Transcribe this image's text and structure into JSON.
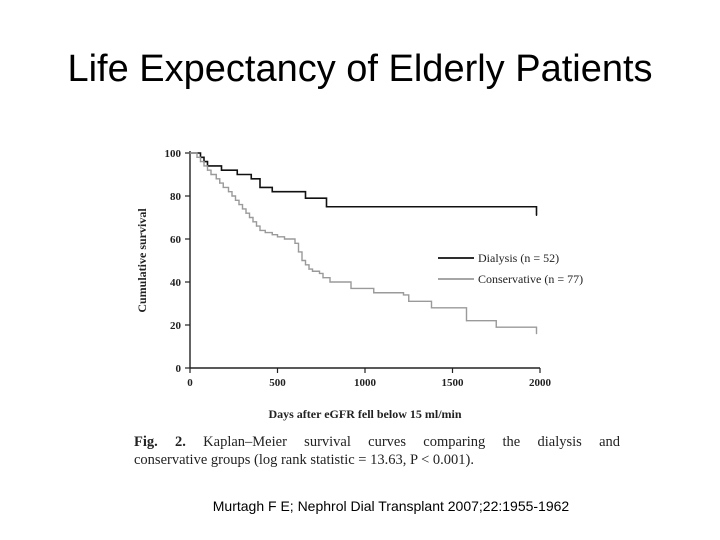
{
  "slide": {
    "title": "Life Expectancy of Elderly Patients",
    "caption_label": "Fig. 2.",
    "caption_line1": "Kaplan–Meier survival curves comparing the dialysis and",
    "caption_line2": "conservative groups (log rank statistic = 13.63,  P < 0.001).",
    "citation": "Murtagh F E; Nephrol Dial Transplant 2007;22:1955-1962"
  },
  "colors": {
    "dialysis": "#111111",
    "conservative": "#9a9a9a",
    "axis": "#222222"
  },
  "chart_data": {
    "type": "line",
    "title": "",
    "xlabel": "Days after eGFR fell below 15 ml/min",
    "ylabel": "Cumulative survival",
    "xlim": [
      0,
      2000
    ],
    "ylim": [
      0,
      100
    ],
    "xticks": [
      0,
      500,
      1000,
      1500,
      2000
    ],
    "yticks": [
      0,
      20,
      40,
      60,
      80,
      100
    ],
    "legend_position": "right",
    "series": [
      {
        "name": "Dialysis",
        "legend_label": "Dialysis (n = 52)",
        "step": true,
        "x": [
          0,
          60,
          80,
          100,
          180,
          270,
          350,
          400,
          470,
          660,
          780,
          1980
        ],
        "y": [
          100,
          98,
          96,
          94,
          92,
          90,
          88,
          84,
          82,
          79,
          75,
          71
        ]
      },
      {
        "name": "Conservative",
        "legend_label": "Conservative (n = 77)",
        "step": true,
        "x": [
          0,
          40,
          60,
          80,
          100,
          120,
          150,
          170,
          190,
          220,
          240,
          260,
          280,
          300,
          320,
          340,
          360,
          380,
          400,
          430,
          470,
          500,
          540,
          600,
          620,
          640,
          660,
          680,
          700,
          740,
          760,
          800,
          920,
          1050,
          1220,
          1250,
          1380,
          1580,
          1750,
          1980
        ],
        "y": [
          100,
          98,
          96,
          94,
          92,
          90,
          88,
          86,
          84,
          82,
          80,
          78,
          76,
          74,
          72,
          70,
          68,
          66,
          64,
          63,
          62,
          61,
          60,
          58,
          54,
          50,
          48,
          46,
          45,
          44,
          42,
          40,
          37,
          35,
          34,
          31,
          28,
          22,
          19,
          16
        ]
      }
    ]
  }
}
